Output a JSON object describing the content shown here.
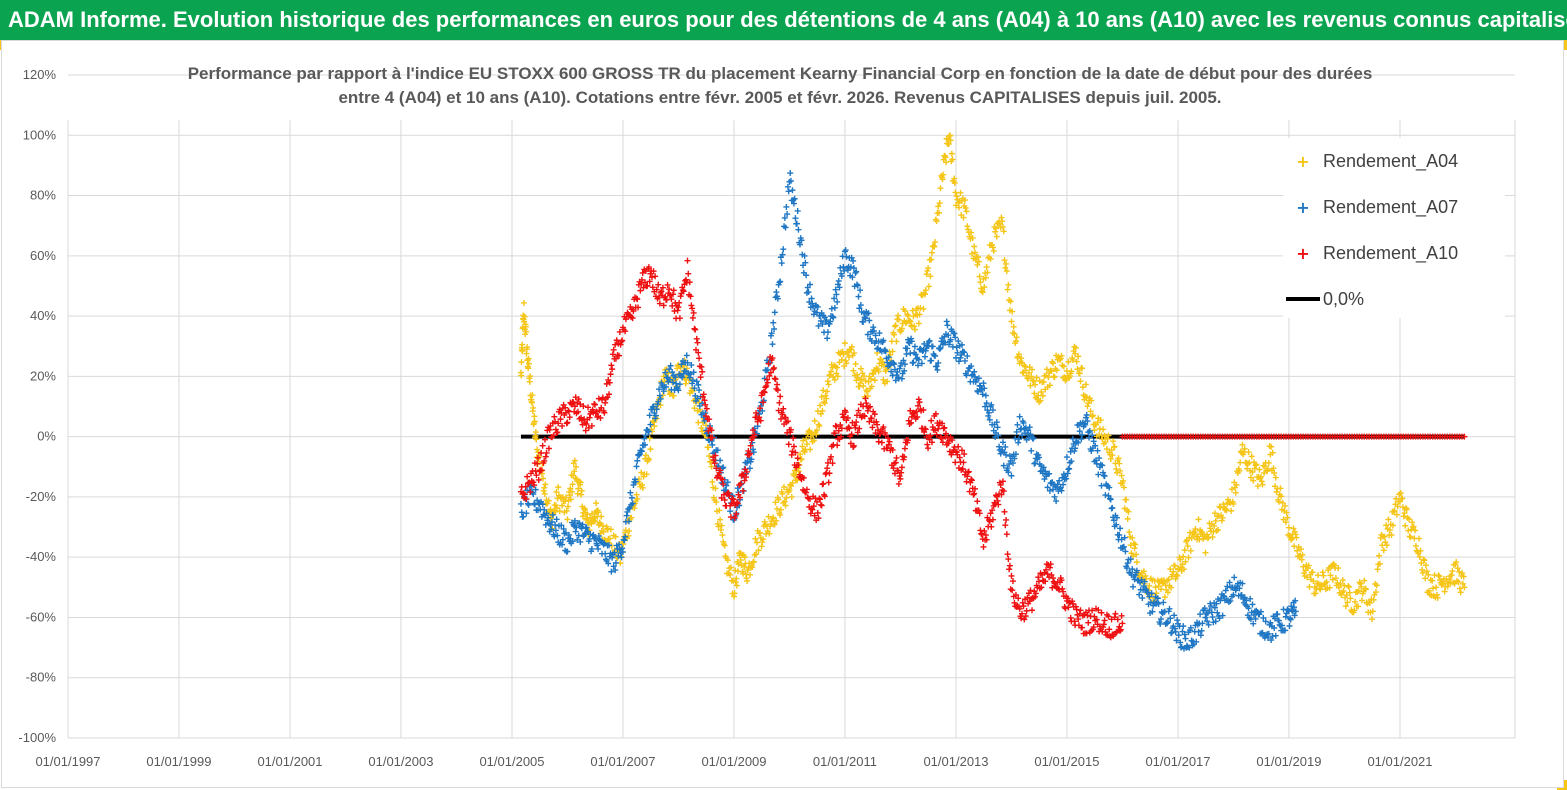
{
  "header": {
    "title": "ADAM Informe. Evolution historique des performances en euros pour des détentions de 4 ans (A04) à 10 ans (A10) avec les revenus connus capitalisés"
  },
  "colors": {
    "header_bg": "#0aa34f",
    "corner_accent": "#f5c518",
    "A04": "#f5c518",
    "A07": "#1f77c4",
    "A10": "#ee1111",
    "zero_line": "#000000",
    "grid": "#d9d9d9"
  },
  "chart_data": {
    "type": "scatter",
    "title": "Performance par rapport à l'indice EU STOXX 600 GROSS TR  du placement Kearny Financial Corp en fonction de la date de début pour des durées",
    "subtitle": "entre 4 (A04) et 10 ans (A10). Cotations entre févr. 2005 et févr. 2026. Revenus CAPITALISES depuis juil. 2005.",
    "xlabel": "",
    "ylabel": "",
    "x_range": [
      "1997-01-01",
      "2022-01-01"
    ],
    "ylim": [
      -100,
      120
    ],
    "y_ticks": [
      "120%",
      "100%",
      "80%",
      "60%",
      "40%",
      "20%",
      "0%",
      "-20%",
      "-40%",
      "-60%",
      "-80%",
      "-100%"
    ],
    "x_ticks": [
      "01/01/1997",
      "01/01/1999",
      "01/01/2001",
      "01/01/2003",
      "01/01/2005",
      "01/01/2007",
      "01/01/2009",
      "01/01/2011",
      "01/01/2013",
      "01/01/2015",
      "01/01/2017",
      "01/01/2019",
      "01/01/2021"
    ],
    "grid": true,
    "legend_position": "top-right",
    "marker": "+",
    "series": [
      {
        "name": "Rendement_A04",
        "key": "A04",
        "points": [
          [
            "2005-03-01",
            20
          ],
          [
            "2005-03-20",
            42
          ],
          [
            "2005-04-15",
            25
          ],
          [
            "2005-05-15",
            10
          ],
          [
            "2005-06-15",
            -5
          ],
          [
            "2005-08-01",
            -15
          ],
          [
            "2005-09-15",
            -28
          ],
          [
            "2005-11-01",
            -20
          ],
          [
            "2006-01-01",
            -25
          ],
          [
            "2006-02-15",
            -10
          ],
          [
            "2006-04-01",
            -20
          ],
          [
            "2006-05-15",
            -30
          ],
          [
            "2006-07-01",
            -25
          ],
          [
            "2006-08-15",
            -30
          ],
          [
            "2006-10-01",
            -33
          ],
          [
            "2006-12-15",
            -40
          ],
          [
            "2007-02-01",
            -30
          ],
          [
            "2007-04-01",
            -20
          ],
          [
            "2007-06-01",
            -10
          ],
          [
            "2007-08-01",
            5
          ],
          [
            "2007-10-01",
            20
          ],
          [
            "2007-12-01",
            15
          ],
          [
            "2008-01-15",
            25
          ],
          [
            "2008-03-01",
            20
          ],
          [
            "2008-05-01",
            10
          ],
          [
            "2008-07-01",
            0
          ],
          [
            "2008-09-01",
            -20
          ],
          [
            "2008-11-01",
            -40
          ],
          [
            "2009-01-01",
            -50
          ],
          [
            "2009-02-15",
            -40
          ],
          [
            "2009-04-01",
            -45
          ],
          [
            "2009-06-01",
            -35
          ],
          [
            "2009-08-01",
            -30
          ],
          [
            "2009-10-01",
            -25
          ],
          [
            "2009-12-01",
            -20
          ],
          [
            "2010-02-01",
            -15
          ],
          [
            "2010-04-01",
            -5
          ],
          [
            "2010-06-01",
            0
          ],
          [
            "2010-08-01",
            10
          ],
          [
            "2010-10-01",
            20
          ],
          [
            "2010-12-01",
            25
          ],
          [
            "2011-02-01",
            30
          ],
          [
            "2011-04-01",
            20
          ],
          [
            "2011-06-01",
            15
          ],
          [
            "2011-08-01",
            25
          ],
          [
            "2011-10-01",
            20
          ],
          [
            "2011-12-01",
            35
          ],
          [
            "2012-02-01",
            40
          ],
          [
            "2012-04-01",
            38
          ],
          [
            "2012-06-01",
            45
          ],
          [
            "2012-08-01",
            60
          ],
          [
            "2012-10-01",
            85
          ],
          [
            "2012-11-15",
            100
          ],
          [
            "2013-01-01",
            80
          ],
          [
            "2013-03-01",
            75
          ],
          [
            "2013-05-01",
            60
          ],
          [
            "2013-07-01",
            50
          ],
          [
            "2013-09-01",
            65
          ],
          [
            "2013-11-01",
            70
          ],
          [
            "2014-01-01",
            40
          ],
          [
            "2014-03-01",
            25
          ],
          [
            "2014-05-01",
            20
          ],
          [
            "2014-07-01",
            15
          ],
          [
            "2014-09-01",
            20
          ],
          [
            "2014-11-01",
            25
          ],
          [
            "2015-01-01",
            22
          ],
          [
            "2015-03-01",
            28
          ],
          [
            "2015-05-01",
            15
          ],
          [
            "2015-07-01",
            5
          ],
          [
            "2015-09-01",
            0
          ],
          [
            "2015-11-01",
            -5
          ],
          [
            "2016-01-01",
            -15
          ],
          [
            "2016-03-01",
            -35
          ],
          [
            "2016-05-01",
            -45
          ],
          [
            "2016-07-01",
            -50
          ],
          [
            "2016-09-01",
            -52
          ],
          [
            "2016-11-01",
            -48
          ],
          [
            "2017-01-01",
            -45
          ],
          [
            "2017-03-01",
            -38
          ],
          [
            "2017-05-01",
            -30
          ],
          [
            "2017-07-01",
            -35
          ],
          [
            "2017-09-01",
            -28
          ],
          [
            "2017-11-01",
            -25
          ],
          [
            "2018-01-01",
            -20
          ],
          [
            "2018-03-01",
            -5
          ],
          [
            "2018-05-01",
            -10
          ],
          [
            "2018-07-01",
            -15
          ],
          [
            "2018-09-01",
            -5
          ],
          [
            "2018-11-01",
            -20
          ],
          [
            "2019-01-01",
            -30
          ],
          [
            "2019-03-01",
            -38
          ],
          [
            "2019-05-01",
            -45
          ],
          [
            "2019-07-01",
            -50
          ],
          [
            "2019-09-01",
            -48
          ],
          [
            "2019-11-01",
            -45
          ],
          [
            "2020-01-01",
            -52
          ],
          [
            "2020-03-01",
            -55
          ],
          [
            "2020-05-01",
            -50
          ],
          [
            "2020-07-01",
            -58
          ],
          [
            "2020-09-01",
            -35
          ],
          [
            "2020-11-01",
            -30
          ],
          [
            "2021-01-01",
            -20
          ],
          [
            "2021-03-01",
            -30
          ],
          [
            "2021-05-01",
            -35
          ],
          [
            "2021-07-01",
            -48
          ],
          [
            "2021-09-01",
            -50
          ],
          [
            "2021-11-01",
            -47
          ],
          [
            "2022-01-01",
            -45
          ],
          [
            "2022-03-01",
            -50
          ]
        ]
      },
      {
        "name": "Rendement_A07",
        "key": "A07",
        "points": [
          [
            "2005-03-01",
            -25
          ],
          [
            "2005-05-01",
            -20
          ],
          [
            "2005-07-01",
            -22
          ],
          [
            "2005-09-01",
            -28
          ],
          [
            "2005-11-01",
            -32
          ],
          [
            "2006-01-01",
            -35
          ],
          [
            "2006-03-01",
            -30
          ],
          [
            "2006-05-01",
            -33
          ],
          [
            "2006-07-01",
            -35
          ],
          [
            "2006-09-01",
            -38
          ],
          [
            "2006-11-01",
            -42
          ],
          [
            "2007-01-01",
            -35
          ],
          [
            "2007-03-01",
            -20
          ],
          [
            "2007-05-01",
            -5
          ],
          [
            "2007-07-01",
            5
          ],
          [
            "2007-09-01",
            15
          ],
          [
            "2007-11-01",
            20
          ],
          [
            "2008-01-01",
            18
          ],
          [
            "2008-03-01",
            25
          ],
          [
            "2008-05-01",
            15
          ],
          [
            "2008-07-01",
            5
          ],
          [
            "2008-09-01",
            -5
          ],
          [
            "2008-11-01",
            -15
          ],
          [
            "2009-01-01",
            -25
          ],
          [
            "2009-03-01",
            -15
          ],
          [
            "2009-05-01",
            -5
          ],
          [
            "2009-07-01",
            10
          ],
          [
            "2009-09-01",
            30
          ],
          [
            "2009-11-01",
            55
          ],
          [
            "2010-01-01",
            85
          ],
          [
            "2010-03-01",
            70
          ],
          [
            "2010-05-01",
            50
          ],
          [
            "2010-07-01",
            40
          ],
          [
            "2010-09-01",
            35
          ],
          [
            "2010-11-01",
            45
          ],
          [
            "2011-01-01",
            60
          ],
          [
            "2011-03-01",
            55
          ],
          [
            "2011-05-01",
            40
          ],
          [
            "2011-07-01",
            35
          ],
          [
            "2011-09-01",
            30
          ],
          [
            "2011-11-01",
            25
          ],
          [
            "2012-01-01",
            20
          ],
          [
            "2012-03-01",
            30
          ],
          [
            "2012-05-01",
            25
          ],
          [
            "2012-07-01",
            30
          ],
          [
            "2012-09-01",
            25
          ],
          [
            "2012-11-01",
            35
          ],
          [
            "2013-01-01",
            30
          ],
          [
            "2013-03-01",
            25
          ],
          [
            "2013-05-01",
            20
          ],
          [
            "2013-07-01",
            15
          ],
          [
            "2013-09-01",
            5
          ],
          [
            "2013-11-01",
            -5
          ],
          [
            "2014-01-01",
            -10
          ],
          [
            "2014-03-01",
            5
          ],
          [
            "2014-05-01",
            0
          ],
          [
            "2014-07-01",
            -10
          ],
          [
            "2014-09-01",
            -15
          ],
          [
            "2014-11-01",
            -18
          ],
          [
            "2015-01-01",
            -10
          ],
          [
            "2015-03-01",
            0
          ],
          [
            "2015-05-01",
            5
          ],
          [
            "2015-07-01",
            -5
          ],
          [
            "2015-09-01",
            -15
          ],
          [
            "2015-11-01",
            -25
          ],
          [
            "2016-01-01",
            -35
          ],
          [
            "2016-03-01",
            -45
          ],
          [
            "2016-05-01",
            -50
          ],
          [
            "2016-07-01",
            -55
          ],
          [
            "2016-09-01",
            -58
          ],
          [
            "2016-11-01",
            -60
          ],
          [
            "2017-01-01",
            -65
          ],
          [
            "2017-03-01",
            -68
          ],
          [
            "2017-05-01",
            -65
          ],
          [
            "2017-07-01",
            -60
          ],
          [
            "2017-09-01",
            -58
          ],
          [
            "2017-11-01",
            -55
          ],
          [
            "2018-01-01",
            -50
          ],
          [
            "2018-03-01",
            -52
          ],
          [
            "2018-05-01",
            -58
          ],
          [
            "2018-07-01",
            -62
          ],
          [
            "2018-09-01",
            -64
          ],
          [
            "2018-11-01",
            -62
          ],
          [
            "2019-01-01",
            -60
          ],
          [
            "2019-02-15",
            -58
          ]
        ]
      },
      {
        "name": "Rendement_A10",
        "key": "A10",
        "points": [
          [
            "2005-03-01",
            -20
          ],
          [
            "2005-05-01",
            -15
          ],
          [
            "2005-07-01",
            -10
          ],
          [
            "2005-09-01",
            0
          ],
          [
            "2005-11-01",
            5
          ],
          [
            "2006-01-01",
            8
          ],
          [
            "2006-03-01",
            10
          ],
          [
            "2006-05-01",
            5
          ],
          [
            "2006-07-01",
            8
          ],
          [
            "2006-09-01",
            10
          ],
          [
            "2006-11-01",
            25
          ],
          [
            "2007-01-01",
            35
          ],
          [
            "2007-03-01",
            40
          ],
          [
            "2007-05-01",
            50
          ],
          [
            "2007-07-01",
            55
          ],
          [
            "2007-09-01",
            45
          ],
          [
            "2007-11-01",
            50
          ],
          [
            "2008-01-01",
            40
          ],
          [
            "2008-03-01",
            55
          ],
          [
            "2008-05-01",
            30
          ],
          [
            "2008-07-01",
            10
          ],
          [
            "2008-09-01",
            -10
          ],
          [
            "2008-11-01",
            -20
          ],
          [
            "2009-01-01",
            -25
          ],
          [
            "2009-03-01",
            -15
          ],
          [
            "2009-05-01",
            0
          ],
          [
            "2009-07-01",
            10
          ],
          [
            "2009-09-01",
            25
          ],
          [
            "2009-11-01",
            10
          ],
          [
            "2010-01-01",
            0
          ],
          [
            "2010-03-01",
            -10
          ],
          [
            "2010-05-01",
            -20
          ],
          [
            "2010-07-01",
            -25
          ],
          [
            "2010-09-01",
            -15
          ],
          [
            "2010-11-01",
            0
          ],
          [
            "2011-01-01",
            5
          ],
          [
            "2011-03-01",
            0
          ],
          [
            "2011-05-01",
            10
          ],
          [
            "2011-07-01",
            5
          ],
          [
            "2011-09-01",
            0
          ],
          [
            "2011-11-01",
            -5
          ],
          [
            "2012-01-01",
            -15
          ],
          [
            "2012-03-01",
            5
          ],
          [
            "2012-05-01",
            10
          ],
          [
            "2012-07-01",
            0
          ],
          [
            "2012-09-01",
            5
          ],
          [
            "2012-11-01",
            0
          ],
          [
            "2013-01-01",
            -5
          ],
          [
            "2013-03-01",
            -10
          ],
          [
            "2013-05-01",
            -20
          ],
          [
            "2013-07-01",
            -35
          ],
          [
            "2013-09-01",
            -25
          ],
          [
            "2013-11-01",
            -15
          ],
          [
            "2014-01-01",
            -50
          ],
          [
            "2014-03-01",
            -58
          ],
          [
            "2014-05-01",
            -55
          ],
          [
            "2014-07-01",
            -50
          ],
          [
            "2014-09-01",
            -45
          ],
          [
            "2014-11-01",
            -48
          ],
          [
            "2015-01-01",
            -55
          ],
          [
            "2015-03-01",
            -60
          ],
          [
            "2015-05-01",
            -62
          ],
          [
            "2015-07-01",
            -60
          ],
          [
            "2015-09-01",
            -62
          ],
          [
            "2015-11-01",
            -63
          ],
          [
            "2016-01-01",
            -62
          ]
        ]
      },
      {
        "name": "0,0%",
        "key": "zero",
        "points": [
          [
            "2005-03-01",
            0
          ],
          [
            "2022-03-01",
            0
          ]
        ]
      }
    ],
    "zero_overlay": {
      "name": "Rendement_A10",
      "from": "2016-01-01",
      "to": "2022-03-01",
      "value": 0
    }
  },
  "legend": [
    {
      "label": "Rendement_A04",
      "marker": "+",
      "key": "A04"
    },
    {
      "label": "Rendement_A07",
      "marker": "+",
      "key": "A07"
    },
    {
      "label": "Rendement_A10",
      "marker": "+",
      "key": "A10"
    },
    {
      "label": "0,0%",
      "marker": "line",
      "key": "zero"
    }
  ]
}
